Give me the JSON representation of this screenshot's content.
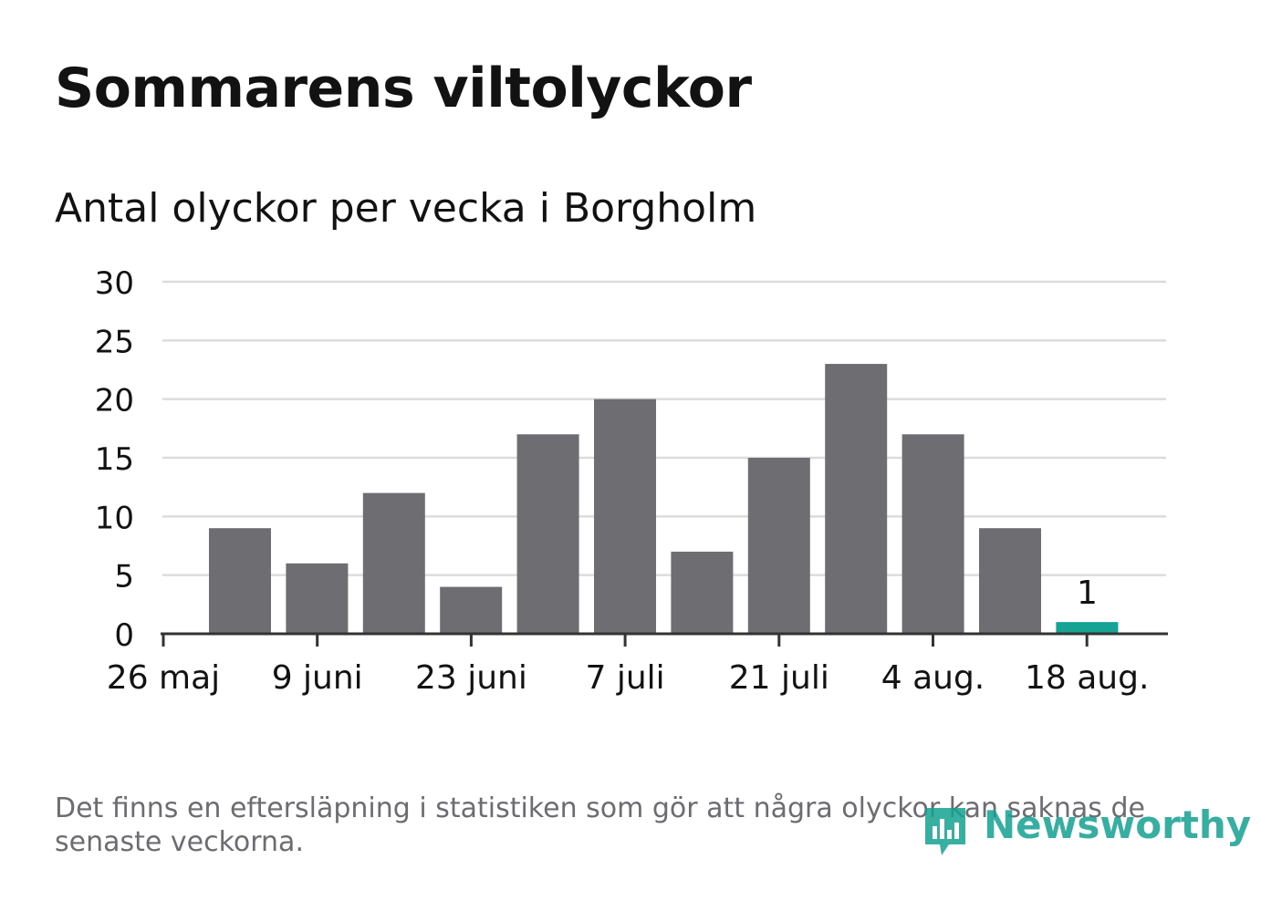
{
  "colors": {
    "bar": "#6e6d72",
    "highlight": "#16a393",
    "grid": "#dcdcdc",
    "axis": "#333333",
    "text": "#121212",
    "muted": "#6c6c71",
    "brand": "#14a191"
  },
  "footnote": "Det finns en eftersläpning i statistiken som gör att några olyckor kan saknas de senaste veckorna.",
  "logo": {
    "text": "Newsworthy",
    "icon": "newsworthy-logo-icon"
  },
  "chart_data": {
    "type": "bar",
    "title": "Sommarens viltolyckor",
    "subtitle": "Antal olyckor per vecka i Borgholm",
    "xlabel": "",
    "ylabel": "",
    "ylim": [
      0,
      30
    ],
    "yticks": [
      0,
      5,
      10,
      15,
      20,
      25,
      30
    ],
    "xtick_labels": [
      "26 maj",
      "9 juni",
      "23 juni",
      "7 juli",
      "21 juli",
      "4 aug.",
      "18 aug."
    ],
    "values": [
      9,
      6,
      12,
      4,
      17,
      20,
      7,
      15,
      23,
      17,
      9,
      1
    ],
    "highlight_last": true,
    "data_labels": [
      {
        "index": 11,
        "text": "1"
      }
    ],
    "grid": true,
    "legend": "none"
  }
}
